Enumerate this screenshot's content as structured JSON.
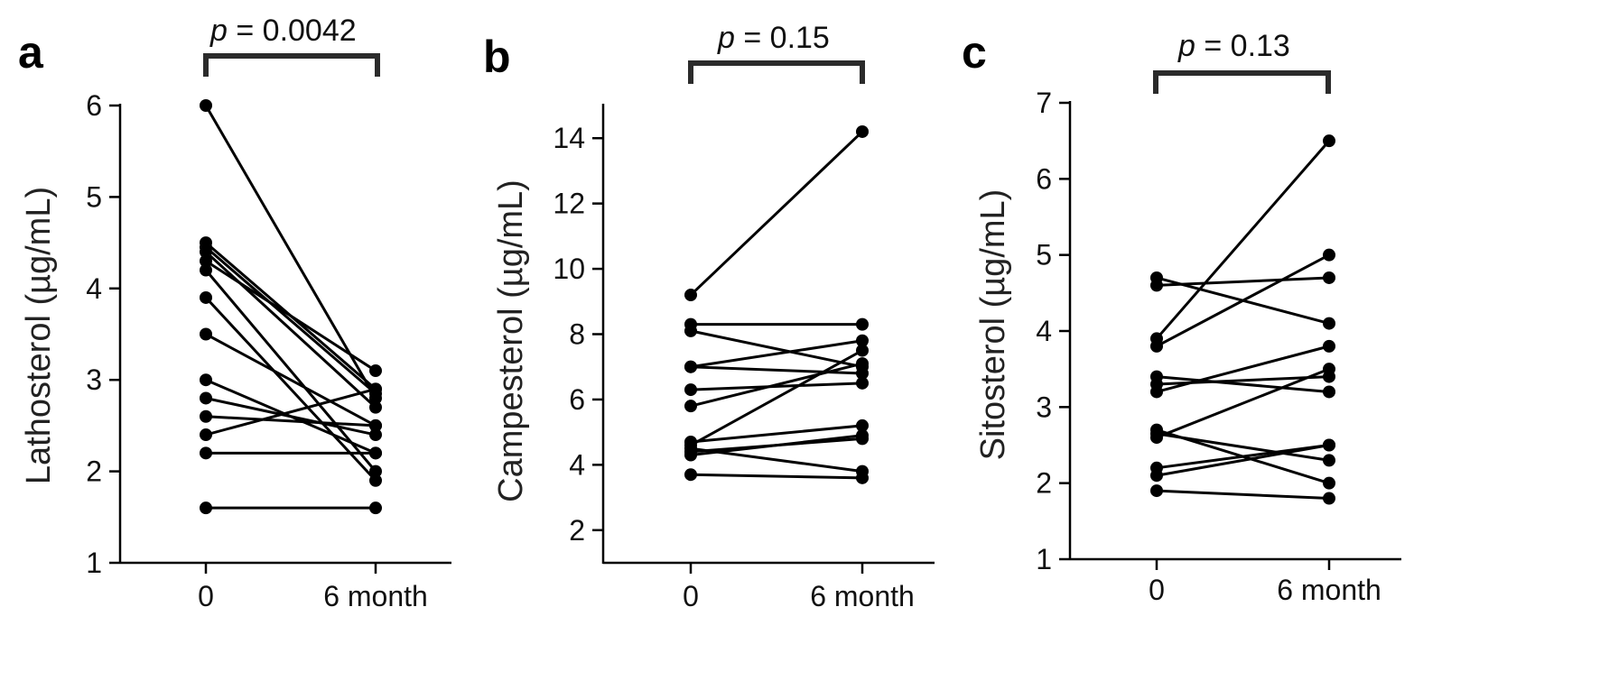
{
  "chart_data": [
    {
      "panel": "a",
      "type": "line",
      "p_prefix": "p",
      "p_value": " = 0.0042",
      "ylabel": "Lathosterol (µg/mL)",
      "x_categories": [
        "0",
        "6 month"
      ],
      "yticks": [
        "1",
        "2",
        "3",
        "4",
        "5",
        "6"
      ],
      "ylim": [
        1,
        6
      ],
      "pairs": [
        [
          6.0,
          2.8
        ],
        [
          4.5,
          2.9
        ],
        [
          4.45,
          2.85
        ],
        [
          4.4,
          2.7
        ],
        [
          4.3,
          3.1
        ],
        [
          4.2,
          2.0
        ],
        [
          3.9,
          1.9
        ],
        [
          3.5,
          2.5
        ],
        [
          3.0,
          2.2
        ],
        [
          2.8,
          2.4
        ],
        [
          2.6,
          2.5
        ],
        [
          2.4,
          2.9
        ],
        [
          2.2,
          2.2
        ],
        [
          1.6,
          1.6
        ]
      ]
    },
    {
      "panel": "b",
      "type": "line",
      "p_prefix": "p",
      "p_value": " = 0.15",
      "ylabel": "Campesterol (µg/mL)",
      "x_categories": [
        "0",
        "6 month"
      ],
      "yticks": [
        "2",
        "4",
        "6",
        "8",
        "10",
        "12",
        "14"
      ],
      "ylim": [
        1,
        15
      ],
      "pairs": [
        [
          9.2,
          14.2
        ],
        [
          8.3,
          8.3
        ],
        [
          8.1,
          7.0
        ],
        [
          7.0,
          6.8
        ],
        [
          7.0,
          7.8
        ],
        [
          6.3,
          6.5
        ],
        [
          5.8,
          7.1
        ],
        [
          4.7,
          5.2
        ],
        [
          4.6,
          7.5
        ],
        [
          4.5,
          3.8
        ],
        [
          4.4,
          4.8
        ],
        [
          4.3,
          4.9
        ],
        [
          3.7,
          3.6
        ]
      ]
    },
    {
      "panel": "c",
      "type": "line",
      "p_prefix": "p",
      "p_value": " = 0.13",
      "ylabel": "Sitosterol (µg/mL)",
      "x_categories": [
        "0",
        "6 month"
      ],
      "yticks": [
        "1",
        "2",
        "3",
        "4",
        "5",
        "6",
        "7"
      ],
      "ylim": [
        1,
        7
      ],
      "pairs": [
        [
          4.7,
          4.1
        ],
        [
          4.6,
          4.7
        ],
        [
          3.9,
          6.5
        ],
        [
          3.8,
          5.0
        ],
        [
          3.4,
          3.2
        ],
        [
          3.3,
          3.4
        ],
        [
          3.2,
          3.8
        ],
        [
          2.7,
          2.0
        ],
        [
          2.6,
          3.5
        ],
        [
          2.65,
          2.3
        ],
        [
          2.2,
          2.5
        ],
        [
          2.1,
          2.5
        ],
        [
          1.9,
          1.8
        ]
      ]
    }
  ]
}
